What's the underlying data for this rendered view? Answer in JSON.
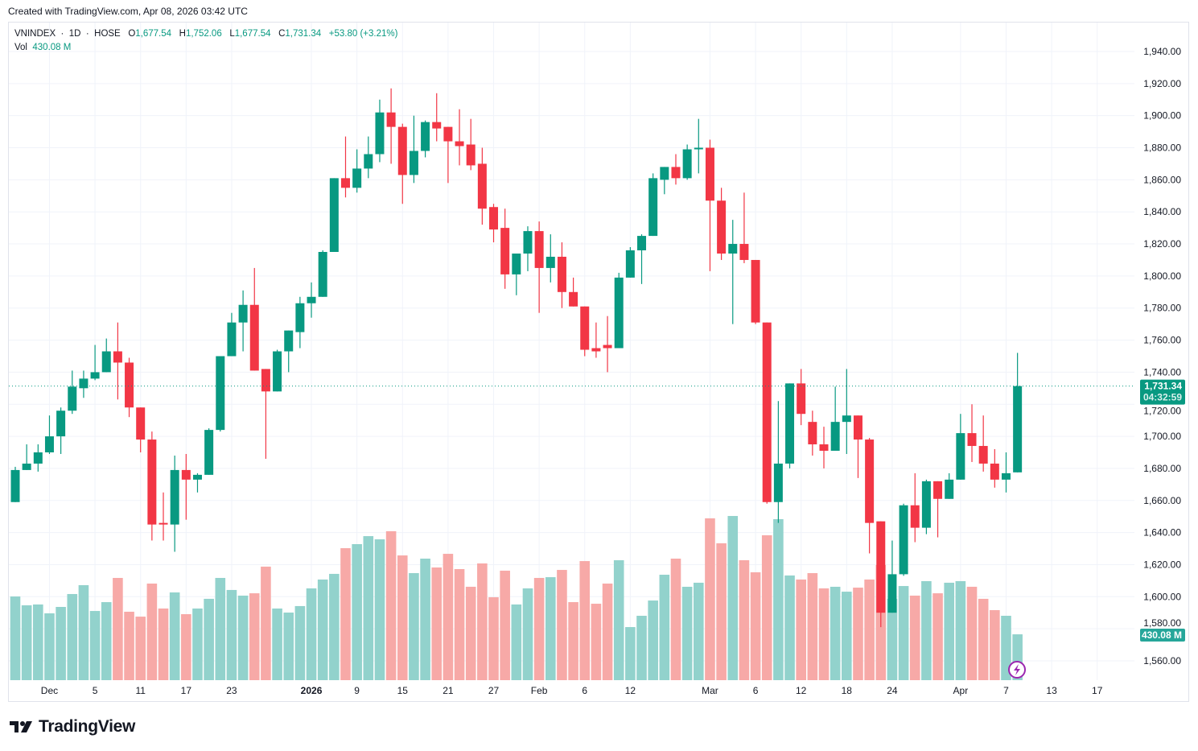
{
  "watermark": "Created with TradingView.com, Apr 08, 2026 03:42 UTC",
  "legend": {
    "symbol": "VNINDEX",
    "interval": "1D",
    "exchange": "HOSE",
    "separator": "·",
    "o_label": "O",
    "o": "1,677.54",
    "h_label": "H",
    "h": "1,752.06",
    "l_label": "L",
    "l": "1,677.54",
    "c_label": "C",
    "c": "1,731.34",
    "change": "+53.80 (+3.21%)",
    "vol_label": "Vol",
    "vol": "430.08 M"
  },
  "colors": {
    "up": "#089981",
    "down": "#F23645",
    "vol_up": "#92d2cc",
    "vol_down": "#f7a9a7",
    "grid": "#f0f3fa"
  },
  "price_badge": {
    "price": "1,731.34",
    "countdown": "04:32:59"
  },
  "volume_badge": "430.08 M",
  "brand": "TradingView",
  "chart_data": {
    "type": "candlestick",
    "title": "VNINDEX · 1D · HOSE",
    "candle_fields": [
      "open",
      "high",
      "low",
      "close",
      "volume_millions"
    ],
    "candles": [
      [
        1659,
        1681,
        1659,
        1679,
        785
      ],
      [
        1679,
        1695,
        1679,
        1683,
        702
      ],
      [
        1683,
        1695,
        1678,
        1690,
        710
      ],
      [
        1690,
        1713,
        1689,
        1700,
        627
      ],
      [
        1700,
        1718,
        1689,
        1716,
        687
      ],
      [
        1716,
        1741,
        1714,
        1731,
        808
      ],
      [
        1730,
        1741,
        1724,
        1736,
        891
      ],
      [
        1736,
        1757,
        1735,
        1740,
        649
      ],
      [
        1740,
        1761,
        1740,
        1753,
        732
      ],
      [
        1753,
        1771,
        1723,
        1746,
        959
      ],
      [
        1746,
        1749,
        1712,
        1718,
        642
      ],
      [
        1718,
        1718,
        1690,
        1698,
        596
      ],
      [
        1698,
        1703,
        1635,
        1645,
        906
      ],
      [
        1646,
        1665,
        1635,
        1645,
        672
      ],
      [
        1645,
        1688,
        1628,
        1679,
        823
      ],
      [
        1679,
        1689,
        1648,
        1673,
        619
      ],
      [
        1673,
        1677,
        1665,
        1676,
        672
      ],
      [
        1676,
        1705,
        1676,
        1704,
        763
      ],
      [
        1704,
        1750,
        1703,
        1750,
        959
      ],
      [
        1750,
        1777,
        1750,
        1771,
        846
      ],
      [
        1771,
        1791,
        1753,
        1782,
        793
      ],
      [
        1782,
        1805,
        1741,
        1741,
        815
      ],
      [
        1742,
        1742,
        1686,
        1728,
        1065
      ],
      [
        1728,
        1754,
        1728,
        1753,
        672
      ],
      [
        1753,
        1766,
        1740,
        1766,
        634
      ],
      [
        1765,
        1787,
        1755,
        1783,
        695
      ],
      [
        1783,
        1796,
        1774,
        1787,
        861
      ],
      [
        1787,
        1816,
        1787,
        1815,
        944
      ],
      [
        1815,
        1861,
        1815,
        1861,
        997
      ],
      [
        1861,
        1887,
        1849,
        1855,
        1238
      ],
      [
        1855,
        1879,
        1852,
        1867,
        1276
      ],
      [
        1867,
        1887,
        1861,
        1876,
        1351
      ],
      [
        1876,
        1910,
        1871,
        1902,
        1321
      ],
      [
        1902,
        1917,
        1870,
        1893,
        1397
      ],
      [
        1893,
        1895,
        1845,
        1863,
        1170
      ],
      [
        1863,
        1900,
        1858,
        1878,
        1004
      ],
      [
        1878,
        1897,
        1874,
        1896,
        1140
      ],
      [
        1896,
        1914,
        1884,
        1892,
        1057
      ],
      [
        1893,
        1893,
        1858,
        1884,
        1185
      ],
      [
        1884,
        1904,
        1869,
        1881,
        1042
      ],
      [
        1882,
        1898,
        1866,
        1869,
        876
      ],
      [
        1870,
        1880,
        1832,
        1842,
        1095
      ],
      [
        1843,
        1845,
        1821,
        1829,
        778
      ],
      [
        1830,
        1842,
        1792,
        1801,
        1027
      ],
      [
        1801,
        1814,
        1788,
        1814,
        710
      ],
      [
        1814,
        1831,
        1803,
        1828,
        861
      ],
      [
        1828,
        1834,
        1777,
        1805,
        959
      ],
      [
        1805,
        1826,
        1796,
        1812,
        966
      ],
      [
        1812,
        1821,
        1780,
        1790,
        1034
      ],
      [
        1790,
        1799,
        1781,
        1781,
        732
      ],
      [
        1781,
        1781,
        1750,
        1754,
        1117
      ],
      [
        1755,
        1771,
        1749,
        1753,
        717
      ],
      [
        1757,
        1775,
        1740,
        1755,
        906
      ],
      [
        1755,
        1802,
        1755,
        1799,
        1125
      ],
      [
        1799,
        1818,
        1799,
        1816,
        498
      ],
      [
        1816,
        1826,
        1795,
        1825,
        604
      ],
      [
        1825,
        1864,
        1825,
        1861,
        747
      ],
      [
        1860,
        1868,
        1851,
        1868,
        989
      ],
      [
        1868,
        1876,
        1857,
        1861,
        1140
      ],
      [
        1861,
        1882,
        1860,
        1879,
        876
      ],
      [
        1879,
        1898,
        1864,
        1880,
        914
      ],
      [
        1880,
        1885,
        1803,
        1847,
        1518
      ],
      [
        1847,
        1855,
        1810,
        1814,
        1284
      ],
      [
        1814,
        1835,
        1770,
        1820,
        1540
      ],
      [
        1820,
        1852,
        1808,
        1810,
        1125
      ],
      [
        1810,
        1810,
        1770,
        1771,
        1012
      ],
      [
        1771,
        1771,
        1658,
        1659,
        1359
      ],
      [
        1659,
        1722,
        1646,
        1683,
        1510
      ],
      [
        1683,
        1733,
        1680,
        1733,
        982
      ],
      [
        1733,
        1742,
        1707,
        1714,
        944
      ],
      [
        1709,
        1716,
        1688,
        1695,
        1004
      ],
      [
        1695,
        1706,
        1680,
        1691,
        861
      ],
      [
        1691,
        1731,
        1691,
        1709,
        876
      ],
      [
        1709,
        1742,
        1689,
        1713,
        830
      ],
      [
        1713,
        1713,
        1674,
        1698,
        868
      ],
      [
        1698,
        1699,
        1627,
        1646,
        944
      ],
      [
        1647,
        1647,
        1581,
        1590,
        1080
      ],
      [
        1590,
        1635,
        1590,
        1614,
        763
      ],
      [
        1614,
        1658,
        1613,
        1657,
        883
      ],
      [
        1657,
        1677,
        1634,
        1643,
        793
      ],
      [
        1643,
        1673,
        1639,
        1672,
        929
      ],
      [
        1672,
        1672,
        1637,
        1661,
        815
      ],
      [
        1661,
        1677,
        1661,
        1673,
        914
      ],
      [
        1673,
        1714,
        1673,
        1702,
        929
      ],
      [
        1702,
        1720,
        1684,
        1694,
        876
      ],
      [
        1694,
        1713,
        1678,
        1683,
        763
      ],
      [
        1683,
        1692,
        1668,
        1673,
        657
      ],
      [
        1673,
        1690,
        1665,
        1677,
        604
      ],
      [
        1677.54,
        1752.06,
        1677.54,
        1731.34,
        430.08
      ]
    ],
    "x_ticks": [
      {
        "label": "Dec",
        "index": 3,
        "bold": false
      },
      {
        "label": "5",
        "index": 7
      },
      {
        "label": "11",
        "index": 11
      },
      {
        "label": "17",
        "index": 15
      },
      {
        "label": "23",
        "index": 19
      },
      {
        "label": "2026",
        "index": 26,
        "bold": true
      },
      {
        "label": "9",
        "index": 30
      },
      {
        "label": "15",
        "index": 34
      },
      {
        "label": "21",
        "index": 38
      },
      {
        "label": "27",
        "index": 42
      },
      {
        "label": "Feb",
        "index": 46
      },
      {
        "label": "6",
        "index": 50
      },
      {
        "label": "12",
        "index": 54
      },
      {
        "label": "Mar",
        "index": 61
      },
      {
        "label": "6",
        "index": 65
      },
      {
        "label": "12",
        "index": 69
      },
      {
        "label": "18",
        "index": 73
      },
      {
        "label": "24",
        "index": 77
      },
      {
        "label": "Apr",
        "index": 83
      },
      {
        "label": "7",
        "index": 87
      },
      {
        "label": "13",
        "index": 91
      },
      {
        "label": "17",
        "index": 95
      }
    ],
    "y_ticks": [
      "1,560.00",
      "1,580.00",
      "1,600.00",
      "1,620.00",
      "1,640.00",
      "1,660.00",
      "1,680.00",
      "1,700.00",
      "1,720.00",
      "1,740.00",
      "1,760.00",
      "1,780.00",
      "1,800.00",
      "1,820.00",
      "1,840.00",
      "1,860.00",
      "1,880.00",
      "1,900.00",
      "1,920.00",
      "1,940.00"
    ],
    "y_tick_values": [
      1560,
      1580,
      1600,
      1620,
      1640,
      1660,
      1680,
      1700,
      1720,
      1740,
      1760,
      1780,
      1800,
      1820,
      1840,
      1860,
      1880,
      1900,
      1920,
      1940
    ],
    "ylim": [
      1548,
      1952
    ],
    "last_price": 1731.34,
    "last_volume": 430.08,
    "grid": true
  }
}
